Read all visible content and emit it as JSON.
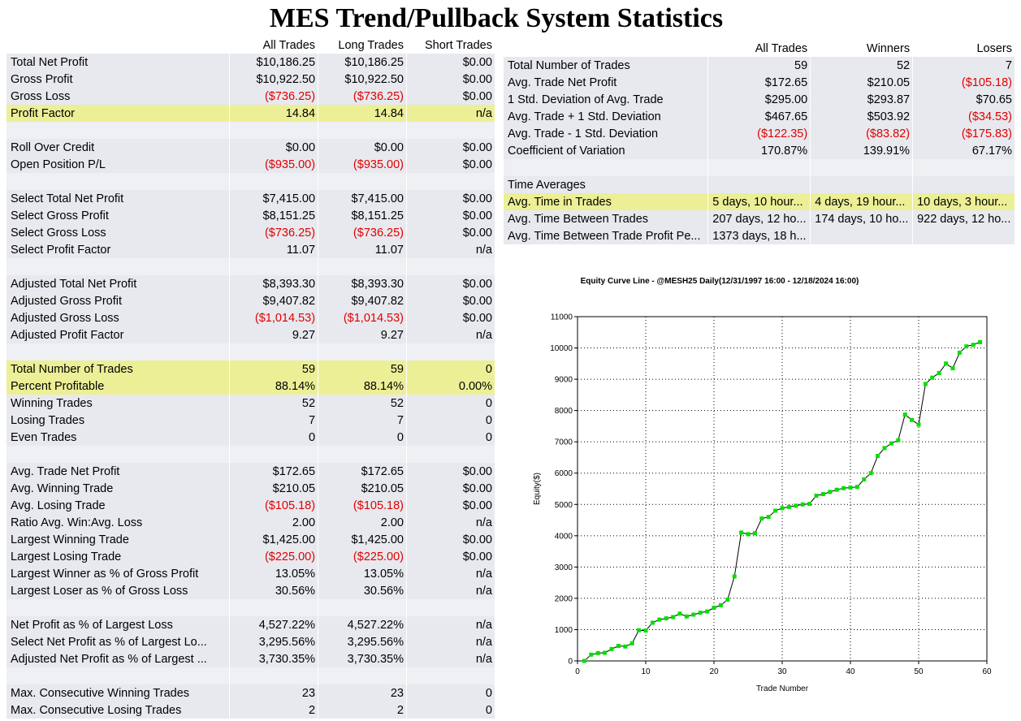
{
  "title": "MES Trend/Pullback System Statistics",
  "left_table": {
    "headers": [
      "",
      "All Trades",
      "Long Trades",
      "Short Trades"
    ],
    "rows": [
      {
        "kind": "shade",
        "cells": [
          "Total Net Profit",
          "$10,186.25",
          "$10,186.25",
          "$0.00"
        ],
        "neg": [
          false,
          false,
          false,
          false
        ]
      },
      {
        "kind": "shade",
        "cells": [
          "Gross Profit",
          "$10,922.50",
          "$10,922.50",
          "$0.00"
        ],
        "neg": [
          false,
          false,
          false,
          false
        ]
      },
      {
        "kind": "shade",
        "cells": [
          "Gross Loss",
          "($736.25)",
          "($736.25)",
          "$0.00"
        ],
        "neg": [
          false,
          true,
          true,
          false
        ]
      },
      {
        "kind": "hl",
        "cells": [
          "Profit Factor",
          "14.84",
          "14.84",
          "n/a"
        ],
        "neg": [
          false,
          false,
          false,
          false
        ]
      },
      {
        "kind": "blank",
        "cells": [
          "",
          "",
          "",
          ""
        ],
        "neg": [
          false,
          false,
          false,
          false
        ]
      },
      {
        "kind": "shade",
        "cells": [
          "Roll Over Credit",
          "$0.00",
          "$0.00",
          "$0.00"
        ],
        "neg": [
          false,
          false,
          false,
          false
        ]
      },
      {
        "kind": "shade",
        "cells": [
          "Open Position P/L",
          "($935.00)",
          "($935.00)",
          "$0.00"
        ],
        "neg": [
          false,
          true,
          true,
          false
        ]
      },
      {
        "kind": "blank",
        "cells": [
          "",
          "",
          "",
          ""
        ],
        "neg": [
          false,
          false,
          false,
          false
        ]
      },
      {
        "kind": "shade",
        "cells": [
          "Select Total Net Profit",
          "$7,415.00",
          "$7,415.00",
          "$0.00"
        ],
        "neg": [
          false,
          false,
          false,
          false
        ]
      },
      {
        "kind": "shade",
        "cells": [
          "Select Gross Profit",
          "$8,151.25",
          "$8,151.25",
          "$0.00"
        ],
        "neg": [
          false,
          false,
          false,
          false
        ]
      },
      {
        "kind": "shade",
        "cells": [
          "Select Gross Loss",
          "($736.25)",
          "($736.25)",
          "$0.00"
        ],
        "neg": [
          false,
          true,
          true,
          false
        ]
      },
      {
        "kind": "shade",
        "cells": [
          "Select Profit Factor",
          "11.07",
          "11.07",
          "n/a"
        ],
        "neg": [
          false,
          false,
          false,
          false
        ]
      },
      {
        "kind": "blank",
        "cells": [
          "",
          "",
          "",
          ""
        ],
        "neg": [
          false,
          false,
          false,
          false
        ]
      },
      {
        "kind": "shade",
        "cells": [
          "Adjusted Total Net Profit",
          "$8,393.30",
          "$8,393.30",
          "$0.00"
        ],
        "neg": [
          false,
          false,
          false,
          false
        ]
      },
      {
        "kind": "shade",
        "cells": [
          "Adjusted Gross Profit",
          "$9,407.82",
          "$9,407.82",
          "$0.00"
        ],
        "neg": [
          false,
          false,
          false,
          false
        ]
      },
      {
        "kind": "shade",
        "cells": [
          "Adjusted Gross Loss",
          "($1,014.53)",
          "($1,014.53)",
          "$0.00"
        ],
        "neg": [
          false,
          true,
          true,
          false
        ]
      },
      {
        "kind": "shade",
        "cells": [
          "Adjusted Profit Factor",
          "9.27",
          "9.27",
          "n/a"
        ],
        "neg": [
          false,
          false,
          false,
          false
        ]
      },
      {
        "kind": "blank",
        "cells": [
          "",
          "",
          "",
          ""
        ],
        "neg": [
          false,
          false,
          false,
          false
        ]
      },
      {
        "kind": "hl",
        "cells": [
          "Total Number of Trades",
          "59",
          "59",
          "0"
        ],
        "neg": [
          false,
          false,
          false,
          false
        ]
      },
      {
        "kind": "hl",
        "cells": [
          "Percent Profitable",
          "88.14%",
          "88.14%",
          "0.00%"
        ],
        "neg": [
          false,
          false,
          false,
          false
        ]
      },
      {
        "kind": "shade",
        "cells": [
          "Winning Trades",
          "52",
          "52",
          "0"
        ],
        "neg": [
          false,
          false,
          false,
          false
        ]
      },
      {
        "kind": "shade",
        "cells": [
          "Losing Trades",
          "7",
          "7",
          "0"
        ],
        "neg": [
          false,
          false,
          false,
          false
        ]
      },
      {
        "kind": "shade",
        "cells": [
          "Even Trades",
          "0",
          "0",
          "0"
        ],
        "neg": [
          false,
          false,
          false,
          false
        ]
      },
      {
        "kind": "blank",
        "cells": [
          "",
          "",
          "",
          ""
        ],
        "neg": [
          false,
          false,
          false,
          false
        ]
      },
      {
        "kind": "shade",
        "cells": [
          "Avg. Trade Net Profit",
          "$172.65",
          "$172.65",
          "$0.00"
        ],
        "neg": [
          false,
          false,
          false,
          false
        ]
      },
      {
        "kind": "shade",
        "cells": [
          "Avg. Winning Trade",
          "$210.05",
          "$210.05",
          "$0.00"
        ],
        "neg": [
          false,
          false,
          false,
          false
        ]
      },
      {
        "kind": "shade",
        "cells": [
          "Avg. Losing Trade",
          "($105.18)",
          "($105.18)",
          "$0.00"
        ],
        "neg": [
          false,
          true,
          true,
          false
        ]
      },
      {
        "kind": "shade",
        "cells": [
          "Ratio Avg. Win:Avg. Loss",
          "2.00",
          "2.00",
          "n/a"
        ],
        "neg": [
          false,
          false,
          false,
          false
        ]
      },
      {
        "kind": "shade",
        "cells": [
          "Largest Winning Trade",
          "$1,425.00",
          "$1,425.00",
          "$0.00"
        ],
        "neg": [
          false,
          false,
          false,
          false
        ]
      },
      {
        "kind": "shade",
        "cells": [
          "Largest Losing Trade",
          "($225.00)",
          "($225.00)",
          "$0.00"
        ],
        "neg": [
          false,
          true,
          true,
          false
        ]
      },
      {
        "kind": "shade",
        "cells": [
          "Largest Winner as % of Gross Profit",
          "13.05%",
          "13.05%",
          "n/a"
        ],
        "neg": [
          false,
          false,
          false,
          false
        ]
      },
      {
        "kind": "shade",
        "cells": [
          "Largest Loser as % of Gross Loss",
          "30.56%",
          "30.56%",
          "n/a"
        ],
        "neg": [
          false,
          false,
          false,
          false
        ]
      },
      {
        "kind": "blank",
        "cells": [
          "",
          "",
          "",
          ""
        ],
        "neg": [
          false,
          false,
          false,
          false
        ]
      },
      {
        "kind": "shade",
        "cells": [
          "Net Profit as % of Largest Loss",
          "4,527.22%",
          "4,527.22%",
          "n/a"
        ],
        "neg": [
          false,
          false,
          false,
          false
        ]
      },
      {
        "kind": "shade",
        "cells": [
          "Select Net Profit as % of Largest Lo...",
          "3,295.56%",
          "3,295.56%",
          "n/a"
        ],
        "neg": [
          false,
          false,
          false,
          false
        ]
      },
      {
        "kind": "shade",
        "cells": [
          "Adjusted Net Profit as % of Largest ...",
          "3,730.35%",
          "3,730.35%",
          "n/a"
        ],
        "neg": [
          false,
          false,
          false,
          false
        ]
      },
      {
        "kind": "blank",
        "cells": [
          "",
          "",
          "",
          ""
        ],
        "neg": [
          false,
          false,
          false,
          false
        ]
      },
      {
        "kind": "shade",
        "cells": [
          "Max. Consecutive Winning Trades",
          "23",
          "23",
          "0"
        ],
        "neg": [
          false,
          false,
          false,
          false
        ]
      },
      {
        "kind": "shade",
        "cells": [
          "Max. Consecutive Losing Trades",
          "2",
          "2",
          "0"
        ],
        "neg": [
          false,
          false,
          false,
          false
        ]
      }
    ]
  },
  "right_table": {
    "headers": [
      "",
      "All Trades",
      "Winners",
      "Losers"
    ],
    "rows": [
      {
        "kind": "shade",
        "cells": [
          "Total Number of Trades",
          "59",
          "52",
          "7"
        ],
        "neg": [
          false,
          false,
          false,
          false
        ]
      },
      {
        "kind": "shade",
        "cells": [
          "Avg. Trade Net Profit",
          "$172.65",
          "$210.05",
          "($105.18)"
        ],
        "neg": [
          false,
          false,
          false,
          true
        ]
      },
      {
        "kind": "shade",
        "cells": [
          "1 Std. Deviation of Avg. Trade",
          "$295.00",
          "$293.87",
          "$70.65"
        ],
        "neg": [
          false,
          false,
          false,
          false
        ]
      },
      {
        "kind": "shade",
        "cells": [
          "Avg. Trade + 1 Std. Deviation",
          "$467.65",
          "$503.92",
          "($34.53)"
        ],
        "neg": [
          false,
          false,
          false,
          true
        ]
      },
      {
        "kind": "shade",
        "cells": [
          "Avg. Trade - 1 Std. Deviation",
          "($122.35)",
          "($83.82)",
          "($175.83)"
        ],
        "neg": [
          false,
          true,
          true,
          true
        ]
      },
      {
        "kind": "shade",
        "cells": [
          "Coefficient of Variation",
          "170.87%",
          "139.91%",
          "67.17%"
        ],
        "neg": [
          false,
          false,
          false,
          false
        ]
      },
      {
        "kind": "blank",
        "cells": [
          "",
          "",
          "",
          ""
        ],
        "neg": [
          false,
          false,
          false,
          false
        ]
      },
      {
        "kind": "shade",
        "cells": [
          "Time Averages",
          "",
          "",
          ""
        ],
        "neg": [
          false,
          false,
          false,
          false
        ]
      },
      {
        "kind": "hl",
        "cells": [
          "Avg. Time in Trades",
          "5 days, 10 hour...",
          "4 days, 19 hour...",
          "10 days, 3 hour..."
        ],
        "neg": [
          false,
          false,
          false,
          false
        ],
        "left": true
      },
      {
        "kind": "shade",
        "cells": [
          "Avg. Time Between Trades",
          "207 days, 12 ho...",
          "174 days, 10 ho...",
          "922 days, 12 ho..."
        ],
        "neg": [
          false,
          false,
          false,
          false
        ],
        "left": true
      },
      {
        "kind": "shade",
        "cells": [
          "Avg. Time Between Trade Profit Pe...",
          "1373 days, 18 h...",
          "",
          ""
        ],
        "neg": [
          false,
          false,
          false,
          false
        ],
        "left": true
      }
    ]
  },
  "chart_data": {
    "type": "line",
    "title": "Equity Curve Line - @MESH25 Daily(12/31/1997 16:00 - 12/18/2024 16:00)",
    "xlabel": "Trade Number",
    "ylabel": "Equity($)",
    "xlim": [
      0,
      60
    ],
    "ylim": [
      0,
      11000
    ],
    "x_ticks": [
      0,
      10,
      20,
      30,
      40,
      50,
      60
    ],
    "y_ticks": [
      0,
      1000,
      2000,
      3000,
      4000,
      5000,
      6000,
      7000,
      8000,
      9000,
      10000,
      11000
    ],
    "grid": true,
    "series": [
      {
        "name": "",
        "color": "#000000",
        "marker_color": "#00e000",
        "x": [
          1,
          2,
          3,
          4,
          5,
          6,
          7,
          8,
          9,
          10,
          11,
          12,
          13,
          14,
          15,
          16,
          17,
          18,
          19,
          20,
          21,
          22,
          23,
          24,
          25,
          26,
          27,
          28,
          29,
          30,
          31,
          32,
          33,
          34,
          35,
          36,
          37,
          38,
          39,
          40,
          41,
          42,
          43,
          44,
          45,
          46,
          47,
          48,
          49,
          50,
          51,
          52,
          53,
          54,
          55,
          56,
          57,
          58,
          59
        ],
        "y": [
          0,
          200,
          250,
          260,
          380,
          480,
          460,
          560,
          980,
          970,
          1220,
          1320,
          1360,
          1400,
          1510,
          1420,
          1480,
          1540,
          1580,
          1700,
          1780,
          1960,
          2700,
          4100,
          4050,
          4080,
          4550,
          4600,
          4800,
          4880,
          4920,
          4960,
          5000,
          5020,
          5280,
          5330,
          5400,
          5470,
          5520,
          5540,
          5560,
          5800,
          6000,
          6550,
          6800,
          6950,
          7050,
          7870,
          7700,
          7550,
          8850,
          9050,
          9200,
          9500,
          9350,
          9850,
          10050,
          10100,
          10186
        ]
      }
    ]
  }
}
